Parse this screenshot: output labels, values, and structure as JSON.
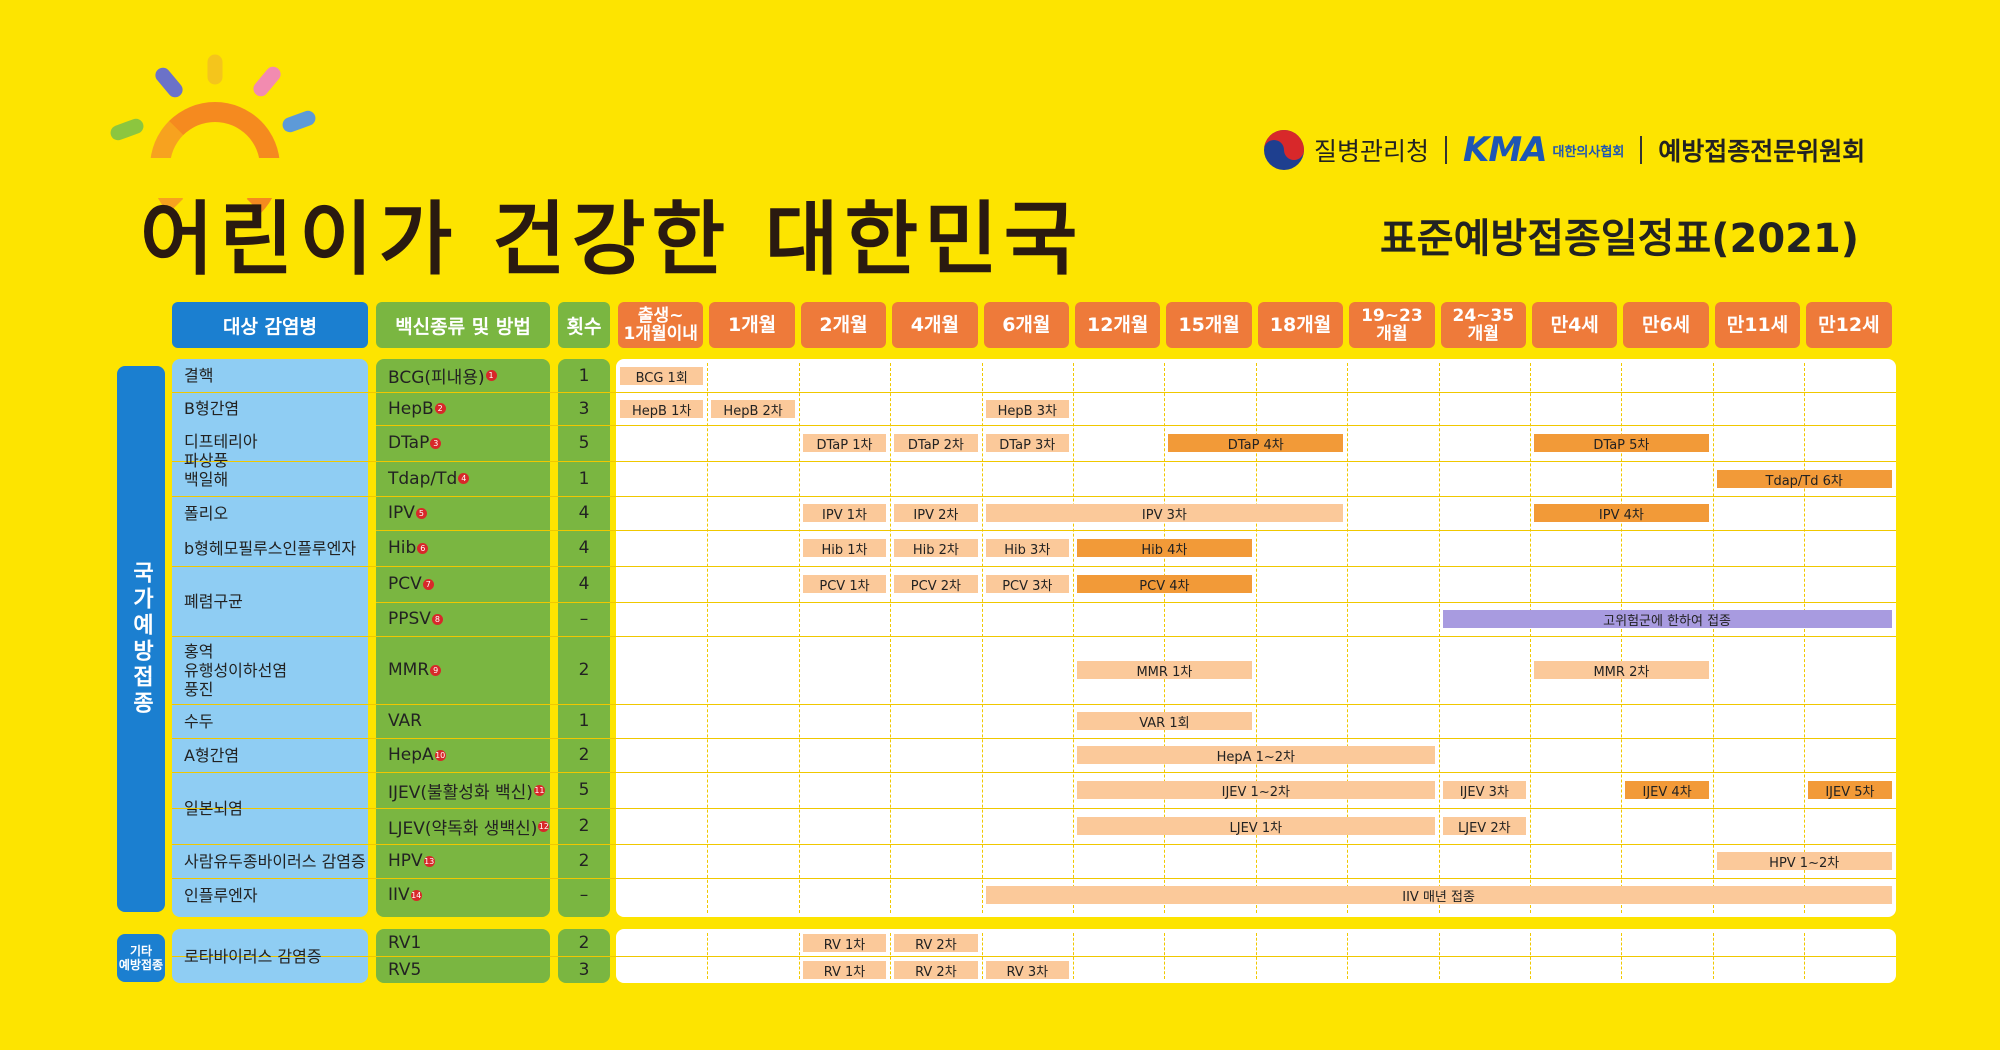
{
  "header": {
    "main_title": "어린이가 건강한 대한민국",
    "schedule_title": "표준예방접종일정표(2021)",
    "org_kdca": "질병관리청",
    "org_kma": "KMA",
    "org_kma_sub": "대한의사협회",
    "org_committee": "예방접종전문위원회"
  },
  "columns": {
    "disease": "대상 감염병",
    "vaccine": "백신종류 및 방법",
    "count": "횟수",
    "ages": [
      "출생~\n1개월이내",
      "1개월",
      "2개월",
      "4개월",
      "6개월",
      "12개월",
      "15개월",
      "18개월",
      "19~23\n개월",
      "24~35\n개월",
      "만4세",
      "만6세",
      "만11세",
      "만12세"
    ]
  },
  "sections": {
    "national": "국가예방접종",
    "other": "기타\n예방접종"
  },
  "diseases": [
    "결핵",
    "B형간염",
    "디프테리아\n파상풍\n백일해",
    "폴리오",
    "b형헤모필루스인플루엔자",
    "폐렴구균",
    "홍역\n유행성이하선염\n풍진",
    "수두",
    "A형간염",
    "일본뇌염",
    "사람유두종바이러스 감염증",
    "인플루엔자",
    "로타바이러스 감염증"
  ],
  "vaccines": [
    {
      "name": "BCG(피내용)",
      "n": "1",
      "count": "1"
    },
    {
      "name": "HepB",
      "n": "2",
      "count": "3"
    },
    {
      "name": "DTaP",
      "n": "3",
      "count": "5"
    },
    {
      "name": "Tdap/Td",
      "n": "4",
      "count": "1"
    },
    {
      "name": "IPV",
      "n": "5",
      "count": "4"
    },
    {
      "name": "Hib",
      "n": "6",
      "count": "4"
    },
    {
      "name": "PCV",
      "n": "7",
      "count": "4"
    },
    {
      "name": "PPSV",
      "n": "8",
      "count": "–"
    },
    {
      "name": "MMR",
      "n": "9",
      "count": "2"
    },
    {
      "name": "VAR",
      "n": "",
      "count": "1"
    },
    {
      "name": "HepA",
      "n": "10",
      "count": "2"
    },
    {
      "name": "IJEV(불활성화 백신)",
      "n": "11",
      "count": "5"
    },
    {
      "name": "LJEV(약독화 생백신)",
      "n": "12",
      "count": "2"
    },
    {
      "name": "HPV",
      "n": "13",
      "count": "2"
    },
    {
      "name": "IIV",
      "n": "14",
      "count": "–"
    },
    {
      "name": "RV1",
      "n": "",
      "count": "2"
    },
    {
      "name": "RV5",
      "n": "",
      "count": "3"
    }
  ],
  "doses": [
    {
      "row": 0,
      "from": 0,
      "to": 0,
      "label": "BCG 1회",
      "style": "pale"
    },
    {
      "row": 1,
      "from": 0,
      "to": 0,
      "label": "HepB 1차",
      "style": "pale"
    },
    {
      "row": 1,
      "from": 1,
      "to": 1,
      "label": "HepB 2차",
      "style": "pale"
    },
    {
      "row": 1,
      "from": 4,
      "to": 4,
      "label": "HepB 3차",
      "style": "pale"
    },
    {
      "row": 2,
      "from": 2,
      "to": 2,
      "label": "DTaP 1차",
      "style": "pale"
    },
    {
      "row": 2,
      "from": 3,
      "to": 3,
      "label": "DTaP 2차",
      "style": "pale"
    },
    {
      "row": 2,
      "from": 4,
      "to": 4,
      "label": "DTaP 3차",
      "style": "pale"
    },
    {
      "row": 2,
      "from": 6,
      "to": 7,
      "label": "DTaP 4차",
      "style": "strong"
    },
    {
      "row": 2,
      "from": 10,
      "to": 11,
      "label": "DTaP 5차",
      "style": "strong"
    },
    {
      "row": 3,
      "from": 12,
      "to": 13,
      "label": "Tdap/Td 6차",
      "style": "strong"
    },
    {
      "row": 4,
      "from": 2,
      "to": 2,
      "label": "IPV 1차",
      "style": "pale"
    },
    {
      "row": 4,
      "from": 3,
      "to": 3,
      "label": "IPV 2차",
      "style": "pale"
    },
    {
      "row": 4,
      "from": 4,
      "to": 7,
      "label": "IPV 3차",
      "style": "pale"
    },
    {
      "row": 4,
      "from": 10,
      "to": 11,
      "label": "IPV 4차",
      "style": "strong"
    },
    {
      "row": 5,
      "from": 2,
      "to": 2,
      "label": "Hib 1차",
      "style": "pale"
    },
    {
      "row": 5,
      "from": 3,
      "to": 3,
      "label": "Hib 2차",
      "style": "pale"
    },
    {
      "row": 5,
      "from": 4,
      "to": 4,
      "label": "Hib 3차",
      "style": "pale"
    },
    {
      "row": 5,
      "from": 5,
      "to": 6,
      "label": "Hib 4차",
      "style": "strong"
    },
    {
      "row": 6,
      "from": 2,
      "to": 2,
      "label": "PCV 1차",
      "style": "pale"
    },
    {
      "row": 6,
      "from": 3,
      "to": 3,
      "label": "PCV 2차",
      "style": "pale"
    },
    {
      "row": 6,
      "from": 4,
      "to": 4,
      "label": "PCV 3차",
      "style": "pale"
    },
    {
      "row": 6,
      "from": 5,
      "to": 6,
      "label": "PCV 4차",
      "style": "strong"
    },
    {
      "row": 7,
      "from": 9,
      "to": 13,
      "label": "고위험군에 한하여 접종",
      "style": "purple"
    },
    {
      "row": 8,
      "from": 5,
      "to": 6,
      "label": "MMR 1차",
      "style": "pale"
    },
    {
      "row": 8,
      "from": 10,
      "to": 11,
      "label": "MMR 2차",
      "style": "pale"
    },
    {
      "row": 9,
      "from": 5,
      "to": 6,
      "label": "VAR 1회",
      "style": "pale"
    },
    {
      "row": 10,
      "from": 5,
      "to": 8,
      "label": "HepA 1~2차",
      "style": "pale"
    },
    {
      "row": 11,
      "from": 5,
      "to": 8,
      "label": "IJEV 1~2차",
      "style": "pale"
    },
    {
      "row": 11,
      "from": 9,
      "to": 9,
      "label": "IJEV 3차",
      "style": "pale"
    },
    {
      "row": 11,
      "from": 11,
      "to": 11,
      "label": "IJEV 4차",
      "style": "strong"
    },
    {
      "row": 11,
      "from": 13,
      "to": 13,
      "label": "IJEV 5차",
      "style": "strong"
    },
    {
      "row": 12,
      "from": 5,
      "to": 8,
      "label": "LJEV 1차",
      "style": "pale"
    },
    {
      "row": 12,
      "from": 9,
      "to": 9,
      "label": "LJEV 2차",
      "style": "pale"
    },
    {
      "row": 13,
      "from": 12,
      "to": 13,
      "label": "HPV 1~2차",
      "style": "pale"
    },
    {
      "row": 14,
      "from": 4,
      "to": 13,
      "label": "IIV 매년 접종",
      "style": "pale"
    },
    {
      "row": 15,
      "from": 2,
      "to": 2,
      "label": "RV 1차",
      "style": "pale"
    },
    {
      "row": 15,
      "from": 3,
      "to": 3,
      "label": "RV 2차",
      "style": "pale"
    },
    {
      "row": 16,
      "from": 2,
      "to": 2,
      "label": "RV 1차",
      "style": "pale"
    },
    {
      "row": 16,
      "from": 3,
      "to": 3,
      "label": "RV 2차",
      "style": "pale"
    },
    {
      "row": 16,
      "from": 4,
      "to": 4,
      "label": "RV 3차",
      "style": "pale"
    }
  ],
  "colors": {
    "background": "#fde400",
    "blue": "#1b7fd0",
    "green": "#7ab641",
    "orange": "#ee7a3a",
    "pale": "#fbc99a",
    "strong": "#f29a38",
    "purple": "#a89be0"
  }
}
